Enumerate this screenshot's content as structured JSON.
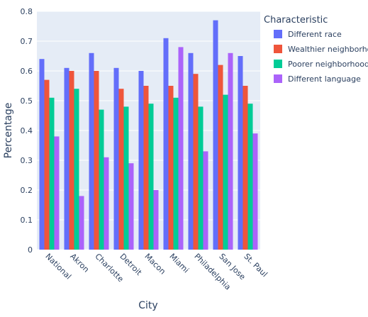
{
  "chart_data": {
    "type": "bar",
    "xlabel": "City",
    "ylabel": "Percentage",
    "ylim": [
      0,
      0.8
    ],
    "yticks": [
      "0",
      "0.1",
      "0.2",
      "0.3",
      "0.4",
      "0.5",
      "0.6",
      "0.7",
      "0.8"
    ],
    "grid": true,
    "legend_position": "top-right",
    "legend_title": "Characteristic",
    "categories": [
      "National",
      "Akron",
      "Charlotte",
      "Detroit",
      "Macon",
      "Miami",
      "Philadelphia",
      "San Jose",
      "St. Paul"
    ],
    "series": [
      {
        "name": "Different race",
        "color": "#636efa",
        "values": [
          0.64,
          0.61,
          0.66,
          0.61,
          0.6,
          0.71,
          0.66,
          0.77,
          0.65
        ]
      },
      {
        "name": "Wealthier neighborhood",
        "color": "#ef553b",
        "values": [
          0.57,
          0.6,
          0.6,
          0.54,
          0.55,
          0.55,
          0.59,
          0.62,
          0.55
        ]
      },
      {
        "name": "Poorer neighborhood",
        "color": "#00cc96",
        "values": [
          0.51,
          0.54,
          0.47,
          0.48,
          0.49,
          0.51,
          0.48,
          0.52,
          0.49
        ]
      },
      {
        "name": "Different language",
        "color": "#ab63fa",
        "values": [
          0.38,
          0.18,
          0.31,
          0.29,
          0.2,
          0.68,
          0.33,
          0.66,
          0.39
        ]
      }
    ]
  }
}
